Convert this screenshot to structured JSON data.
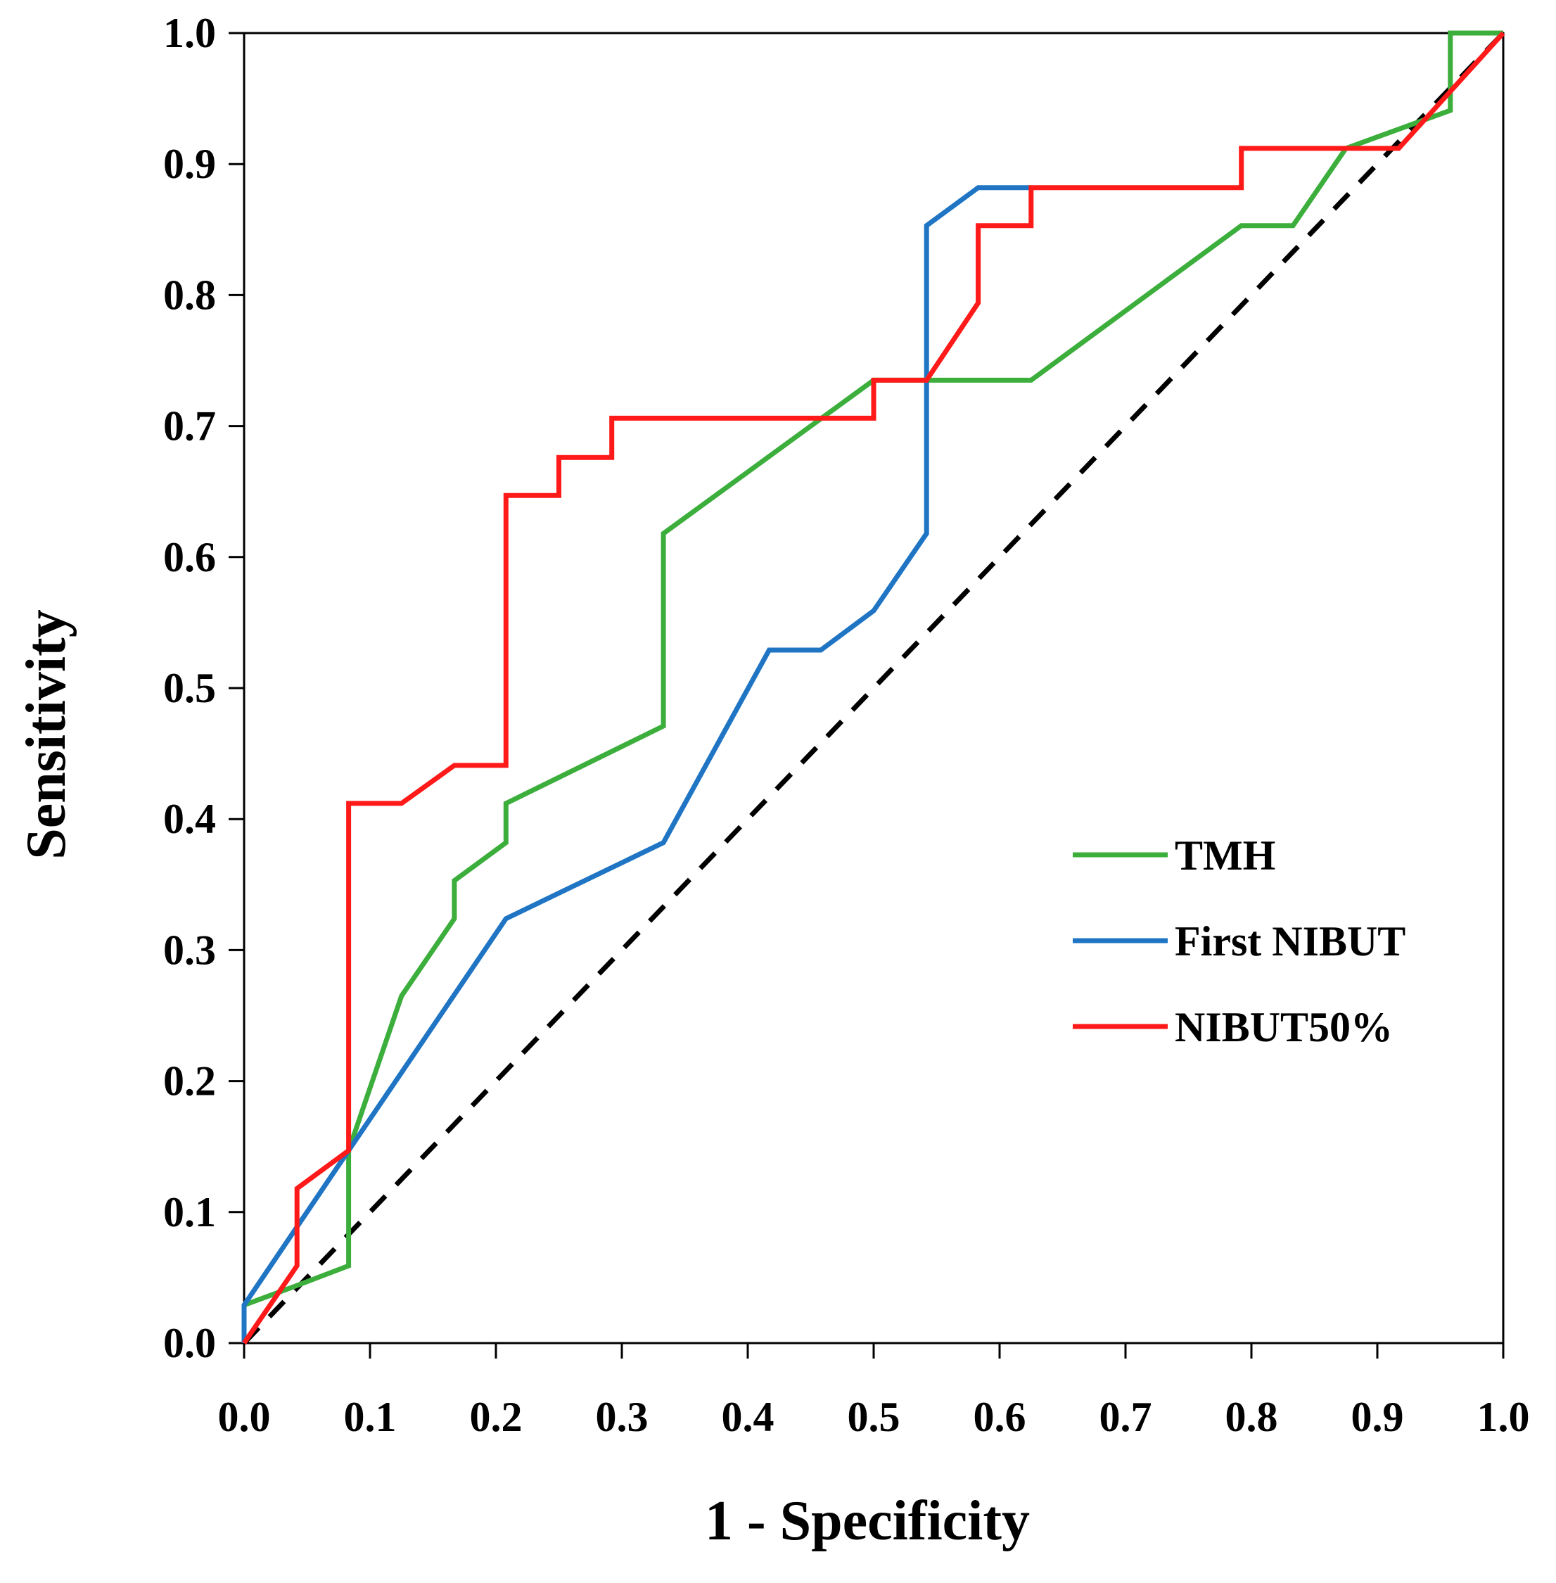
{
  "chart_data": {
    "type": "line",
    "title": "",
    "xlabel": "1 - Specificity",
    "ylabel": "Sensitivity",
    "xlim": [
      0.0,
      1.0
    ],
    "ylim": [
      0.0,
      1.0
    ],
    "xticks": [
      "0.0",
      "0.1",
      "0.2",
      "0.3",
      "0.4",
      "0.5",
      "0.6",
      "0.7",
      "0.8",
      "0.9",
      "1.0"
    ],
    "yticks": [
      "0.0",
      "0.1",
      "0.2",
      "0.3",
      "0.4",
      "0.5",
      "0.6",
      "0.7",
      "0.8",
      "0.9",
      "1.0"
    ],
    "grid": false,
    "legend_position": "right-center",
    "series": [
      {
        "name": "TMH",
        "color": "#3cae3c",
        "points": [
          [
            0.0,
            0.029
          ],
          [
            0.042,
            0.044
          ],
          [
            0.083,
            0.059
          ],
          [
            0.083,
            0.147
          ],
          [
            0.125,
            0.265
          ],
          [
            0.167,
            0.324
          ],
          [
            0.167,
            0.353
          ],
          [
            0.208,
            0.382
          ],
          [
            0.208,
            0.412
          ],
          [
            0.333,
            0.471
          ],
          [
            0.333,
            0.618
          ],
          [
            0.5,
            0.735
          ],
          [
            0.625,
            0.735
          ],
          [
            0.792,
            0.853
          ],
          [
            0.833,
            0.853
          ],
          [
            0.875,
            0.912
          ],
          [
            0.958,
            0.941
          ],
          [
            0.958,
            1.0
          ],
          [
            1.0,
            1.0
          ]
        ]
      },
      {
        "name": "First NIBUT",
        "color": "#1f75c4",
        "points": [
          [
            0.0,
            0.0
          ],
          [
            0.0,
            0.029
          ],
          [
            0.083,
            0.147
          ],
          [
            0.208,
            0.324
          ],
          [
            0.333,
            0.382
          ],
          [
            0.417,
            0.529
          ],
          [
            0.458,
            0.529
          ],
          [
            0.5,
            0.559
          ],
          [
            0.542,
            0.618
          ],
          [
            0.542,
            0.853
          ],
          [
            0.583,
            0.882
          ],
          [
            0.625,
            0.882
          ]
        ]
      },
      {
        "name": "NIBUT50%",
        "color": "#ff1a1a",
        "points": [
          [
            0.0,
            0.0
          ],
          [
            0.042,
            0.059
          ],
          [
            0.042,
            0.118
          ],
          [
            0.083,
            0.147
          ],
          [
            0.083,
            0.412
          ],
          [
            0.125,
            0.412
          ],
          [
            0.167,
            0.441
          ],
          [
            0.208,
            0.441
          ],
          [
            0.208,
            0.647
          ],
          [
            0.25,
            0.647
          ],
          [
            0.25,
            0.676
          ],
          [
            0.292,
            0.676
          ],
          [
            0.292,
            0.706
          ],
          [
            0.5,
            0.706
          ],
          [
            0.5,
            0.735
          ],
          [
            0.542,
            0.735
          ],
          [
            0.583,
            0.794
          ],
          [
            0.583,
            0.853
          ],
          [
            0.625,
            0.853
          ],
          [
            0.625,
            0.882
          ],
          [
            0.792,
            0.882
          ],
          [
            0.792,
            0.912
          ],
          [
            0.917,
            0.912
          ],
          [
            1.0,
            1.0
          ]
        ]
      }
    ],
    "reference_line": {
      "style": "dashed",
      "color": "#000000",
      "points": [
        [
          0.0,
          0.0
        ],
        [
          1.0,
          1.0
        ]
      ]
    }
  }
}
